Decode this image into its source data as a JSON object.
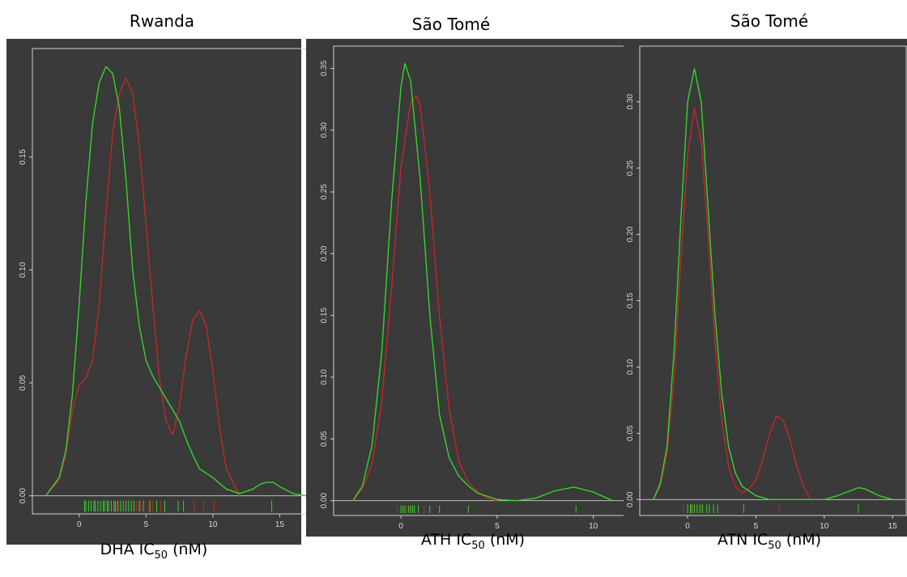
{
  "colors": {
    "background": "#3a3a3a",
    "frame": "#d0d0d0",
    "red_series": "#c0282a",
    "green_series": "#33d62a"
  },
  "chart_data": [
    {
      "type": "line",
      "title": "Rwanda",
      "xlabel_prefix": "DHA IC",
      "xlabel_sub": "50",
      "xlabel_suffix": " (nM)",
      "xlim": [
        -3.5,
        18
      ],
      "ylim": [
        -0.008,
        0.198
      ],
      "xticks": [
        0,
        5,
        10,
        15
      ],
      "yticks": [
        0.0,
        0.05,
        0.1,
        0.15
      ],
      "ytick_labels": [
        "0.00",
        "0.05",
        "0.10",
        "0.15"
      ],
      "series": [
        {
          "color": "red",
          "x": [
            -2.5,
            -1.5,
            -1,
            -0.5,
            0,
            0.5,
            1,
            1.5,
            2,
            2.5,
            3,
            3.5,
            4,
            4.5,
            5,
            5.5,
            6,
            6.5,
            7,
            7.5,
            8,
            8.5,
            9,
            9.5,
            10,
            10.5,
            11,
            12
          ],
          "y": [
            0.0,
            0.007,
            0.018,
            0.038,
            0.049,
            0.052,
            0.06,
            0.085,
            0.125,
            0.16,
            0.178,
            0.185,
            0.178,
            0.155,
            0.12,
            0.085,
            0.052,
            0.033,
            0.027,
            0.04,
            0.062,
            0.078,
            0.082,
            0.075,
            0.055,
            0.03,
            0.012,
            0.0
          ]
        },
        {
          "color": "green",
          "x": [
            -2.5,
            -1.5,
            -1,
            -0.5,
            0,
            0.5,
            1,
            1.5,
            2,
            2.5,
            3,
            3.5,
            4,
            4.5,
            5,
            5.5,
            6,
            6.5,
            7,
            7.5,
            8,
            8.5,
            9,
            10,
            11,
            12,
            13,
            13.5,
            14,
            14.5,
            15,
            16,
            17
          ],
          "y": [
            0.0,
            0.008,
            0.02,
            0.045,
            0.085,
            0.13,
            0.165,
            0.183,
            0.19,
            0.187,
            0.172,
            0.14,
            0.1,
            0.075,
            0.06,
            0.053,
            0.048,
            0.043,
            0.038,
            0.033,
            0.025,
            0.018,
            0.012,
            0.008,
            0.003,
            0.001,
            0.003,
            0.005,
            0.006,
            0.006,
            0.004,
            0.001,
            0.0
          ]
        }
      ],
      "rug_red": [
        2.8,
        4.3,
        4.6,
        5.2,
        5.5,
        6.1,
        8.6,
        9.3,
        10.1
      ],
      "rug_green": [
        0.4,
        0.5,
        0.7,
        0.9,
        1.1,
        1.2,
        1.4,
        1.6,
        1.8,
        1.9,
        2.1,
        2.2,
        2.4,
        2.6,
        2.7,
        2.9,
        3.1,
        3.3,
        3.5,
        3.7,
        3.9,
        4.1,
        4.5,
        4.8,
        5.3,
        5.8,
        6.4,
        7.4,
        7.8,
        14.4
      ]
    },
    {
      "type": "line",
      "title": "São Tomé",
      "xlabel_prefix": "ATH IC",
      "xlabel_sub": "50",
      "xlabel_suffix": " (nM)",
      "xlim": [
        -3.5,
        12.5
      ],
      "ylim": [
        -0.012,
        0.368
      ],
      "xticks": [
        0,
        5,
        10
      ],
      "yticks": [
        0.0,
        0.05,
        0.1,
        0.15,
        0.2,
        0.25,
        0.3,
        0.35
      ],
      "ytick_labels": [
        "0.00",
        "0.05",
        "0.10",
        "0.15",
        "0.20",
        "0.25",
        "0.30",
        "0.35"
      ],
      "series": [
        {
          "color": "red",
          "x": [
            -2.5,
            -2,
            -1.5,
            -1,
            -0.5,
            0,
            0.5,
            0.8,
            1,
            1.5,
            2,
            2.5,
            3,
            3.5,
            4,
            4.5,
            5
          ],
          "y": [
            0.0,
            0.01,
            0.03,
            0.08,
            0.17,
            0.27,
            0.322,
            0.328,
            0.32,
            0.25,
            0.15,
            0.075,
            0.032,
            0.015,
            0.007,
            0.002,
            0.0
          ]
        },
        {
          "color": "green",
          "x": [
            -2.5,
            -2,
            -1.5,
            -1,
            -0.5,
            0,
            0.2,
            0.5,
            1,
            1.5,
            2,
            2.5,
            3,
            3.5,
            4,
            5,
            6,
            7,
            8,
            9,
            10,
            11
          ],
          "y": [
            0.0,
            0.012,
            0.045,
            0.12,
            0.24,
            0.335,
            0.354,
            0.34,
            0.26,
            0.15,
            0.07,
            0.035,
            0.02,
            0.012,
            0.006,
            0.001,
            0.0,
            0.002,
            0.008,
            0.011,
            0.007,
            0.0
          ]
        }
      ],
      "rug_red": [
        -0.2,
        0.3,
        1.2
      ],
      "rug_green": [
        0.0,
        0.1,
        0.2,
        0.4,
        0.5,
        0.6,
        0.7,
        0.9,
        1.5,
        2.0,
        3.5,
        9.1
      ]
    },
    {
      "type": "line",
      "title": "São Tomé",
      "xlabel_prefix": "ATN IC",
      "xlabel_sub": "50",
      "xlabel_suffix": " (nM)",
      "xlim": [
        -3.5,
        16
      ],
      "ylim": [
        -0.012,
        0.342
      ],
      "xticks": [
        0,
        5,
        10,
        15
      ],
      "yticks": [
        0.0,
        0.05,
        0.1,
        0.15,
        0.2,
        0.25,
        0.3
      ],
      "ytick_labels": [
        "0.00",
        "0.05",
        "0.10",
        "0.15",
        "0.20",
        "0.25",
        "0.30"
      ],
      "series": [
        {
          "color": "red",
          "x": [
            -2.5,
            -2,
            -1.5,
            -1,
            -0.5,
            0,
            0.5,
            1,
            1.5,
            2,
            2.5,
            3,
            3.5,
            4,
            4.5,
            5,
            5.5,
            6,
            6.5,
            7,
            7.5,
            8,
            8.5,
            9
          ],
          "y": [
            0.0,
            0.01,
            0.035,
            0.09,
            0.18,
            0.26,
            0.295,
            0.27,
            0.2,
            0.12,
            0.06,
            0.025,
            0.01,
            0.005,
            0.008,
            0.015,
            0.03,
            0.05,
            0.063,
            0.06,
            0.045,
            0.025,
            0.01,
            0.0
          ]
        },
        {
          "color": "green",
          "x": [
            -2.5,
            -2,
            -1.5,
            -1,
            -0.5,
            0,
            0.5,
            1,
            1.5,
            2,
            2.5,
            3,
            3.5,
            4,
            5,
            6,
            8,
            10,
            11,
            12,
            12.5,
            13,
            14,
            15
          ],
          "y": [
            0.0,
            0.012,
            0.04,
            0.11,
            0.21,
            0.3,
            0.325,
            0.3,
            0.22,
            0.14,
            0.08,
            0.04,
            0.02,
            0.01,
            0.003,
            0.0,
            0.0,
            0.0,
            0.003,
            0.007,
            0.009,
            0.008,
            0.003,
            0.0
          ]
        }
      ],
      "rug_red": [
        -0.3,
        0.4,
        1.0,
        6.7
      ],
      "rug_green": [
        0.0,
        0.2,
        0.3,
        0.5,
        0.7,
        0.9,
        1.1,
        1.4,
        1.6,
        1.9,
        2.2,
        4.1,
        12.5
      ]
    }
  ]
}
